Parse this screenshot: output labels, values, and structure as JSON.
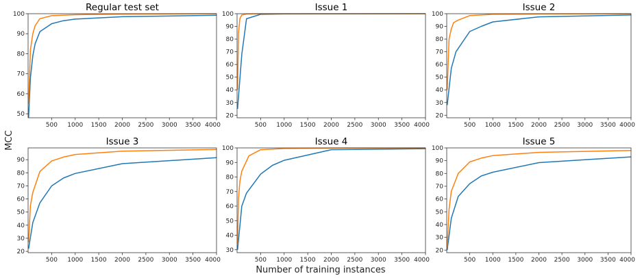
{
  "figure": {
    "xlabel": "Number of training instances",
    "ylabel": "MCC"
  },
  "colors": {
    "series_a": "#1f77b4",
    "series_b": "#ff7f0e"
  },
  "chart_data": [
    {
      "type": "line",
      "title": "Regular test set",
      "xlim": [
        0,
        4000
      ],
      "ylim": [
        48,
        100
      ],
      "xticks": [
        500,
        1000,
        1500,
        2000,
        2500,
        3000,
        3500,
        4000
      ],
      "yticks": [
        50,
        60,
        70,
        80,
        90,
        100
      ],
      "series": [
        {
          "x": [
            10,
            50,
            100,
            150,
            250,
            500,
            750,
            1000,
            2000,
            4000
          ],
          "y": [
            48,
            68,
            79,
            85,
            91,
            95,
            96.5,
            97.3,
            98.5,
            99.2
          ]
        },
        {
          "x": [
            10,
            50,
            100,
            150,
            250,
            500,
            1000,
            2000,
            4000
          ],
          "y": [
            55,
            82,
            90,
            94,
            97.5,
            99,
            99.5,
            99.8,
            100
          ]
        }
      ]
    },
    {
      "type": "line",
      "title": "Issue 1",
      "xlim": [
        0,
        4000
      ],
      "ylim": [
        18,
        100
      ],
      "xticks": [
        500,
        1000,
        1500,
        2000,
        2500,
        3000,
        3500,
        4000
      ],
      "yticks": [
        20,
        30,
        40,
        50,
        60,
        70,
        80,
        90,
        100
      ],
      "series": [
        {
          "x": [
            10,
            100,
            200,
            500,
            1000,
            4000
          ],
          "y": [
            25,
            68,
            96,
            99.5,
            99.8,
            100
          ]
        },
        {
          "x": [
            10,
            30,
            60,
            100,
            200,
            500,
            4000
          ],
          "y": [
            40,
            85,
            96,
            99,
            99.8,
            100,
            100
          ]
        }
      ]
    },
    {
      "type": "line",
      "title": "Issue 2",
      "xlim": [
        0,
        4000
      ],
      "ylim": [
        18,
        100
      ],
      "xticks": [
        500,
        1000,
        1500,
        2000,
        2500,
        3000,
        3500,
        4000
      ],
      "yticks": [
        20,
        30,
        40,
        50,
        60,
        70,
        80,
        90,
        100
      ],
      "series": [
        {
          "x": [
            10,
            100,
            200,
            500,
            750,
            1000,
            2000,
            4000
          ],
          "y": [
            28,
            57,
            70,
            86,
            90,
            93.5,
            97.5,
            99
          ]
        },
        {
          "x": [
            10,
            50,
            100,
            150,
            250,
            500,
            1000,
            2000,
            4000
          ],
          "y": [
            40,
            80,
            88,
            93,
            95,
            98.5,
            99.5,
            99.8,
            100
          ]
        }
      ]
    },
    {
      "type": "line",
      "title": "Issue 3",
      "xlim": [
        0,
        4000
      ],
      "ylim": [
        19,
        99
      ],
      "xticks": [
        500,
        1000,
        1500,
        2000,
        2500,
        3000,
        3500,
        4000
      ],
      "yticks": [
        20,
        30,
        40,
        50,
        60,
        70,
        80,
        90
      ],
      "series": [
        {
          "x": [
            10,
            100,
            250,
            500,
            750,
            1000,
            2000,
            4000
          ],
          "y": [
            22,
            42,
            57,
            70,
            76,
            79.5,
            87,
            91.5
          ]
        },
        {
          "x": [
            10,
            50,
            100,
            250,
            500,
            750,
            1000,
            2000,
            4000
          ],
          "y": [
            27,
            55,
            65,
            81,
            89,
            92,
            94,
            96.5,
            97.8
          ]
        }
      ]
    },
    {
      "type": "line",
      "title": "Issue 4",
      "xlim": [
        0,
        4000
      ],
      "ylim": [
        28,
        100
      ],
      "xticks": [
        500,
        1000,
        1500,
        2000,
        2500,
        3000,
        3500,
        4000
      ],
      "yticks": [
        30,
        40,
        50,
        60,
        70,
        80,
        90,
        100
      ],
      "series": [
        {
          "x": [
            10,
            100,
            200,
            500,
            750,
            1000,
            2000,
            4000
          ],
          "y": [
            30,
            60,
            69,
            82,
            88,
            91.5,
            98.8,
            99.5
          ]
        },
        {
          "x": [
            10,
            30,
            60,
            100,
            250,
            500,
            1000,
            2000,
            4000
          ],
          "y": [
            34,
            65,
            77,
            84,
            94.5,
            98.8,
            99.6,
            99.9,
            100
          ]
        }
      ]
    },
    {
      "type": "line",
      "title": "Issue 5",
      "xlim": [
        0,
        4000
      ],
      "ylim": [
        18,
        100
      ],
      "xticks": [
        500,
        1000,
        1500,
        2000,
        2500,
        3000,
        3500,
        4000
      ],
      "yticks": [
        20,
        30,
        40,
        50,
        60,
        70,
        80,
        90,
        100
      ],
      "series": [
        {
          "x": [
            10,
            100,
            250,
            500,
            750,
            1000,
            2000,
            4000
          ],
          "y": [
            20,
            45,
            62,
            72,
            78,
            81,
            88.5,
            93
          ]
        },
        {
          "x": [
            10,
            50,
            100,
            250,
            500,
            750,
            1000,
            2000,
            4000
          ],
          "y": [
            22,
            52,
            66,
            80,
            89,
            92,
            94,
            96.5,
            98
          ]
        }
      ]
    }
  ]
}
